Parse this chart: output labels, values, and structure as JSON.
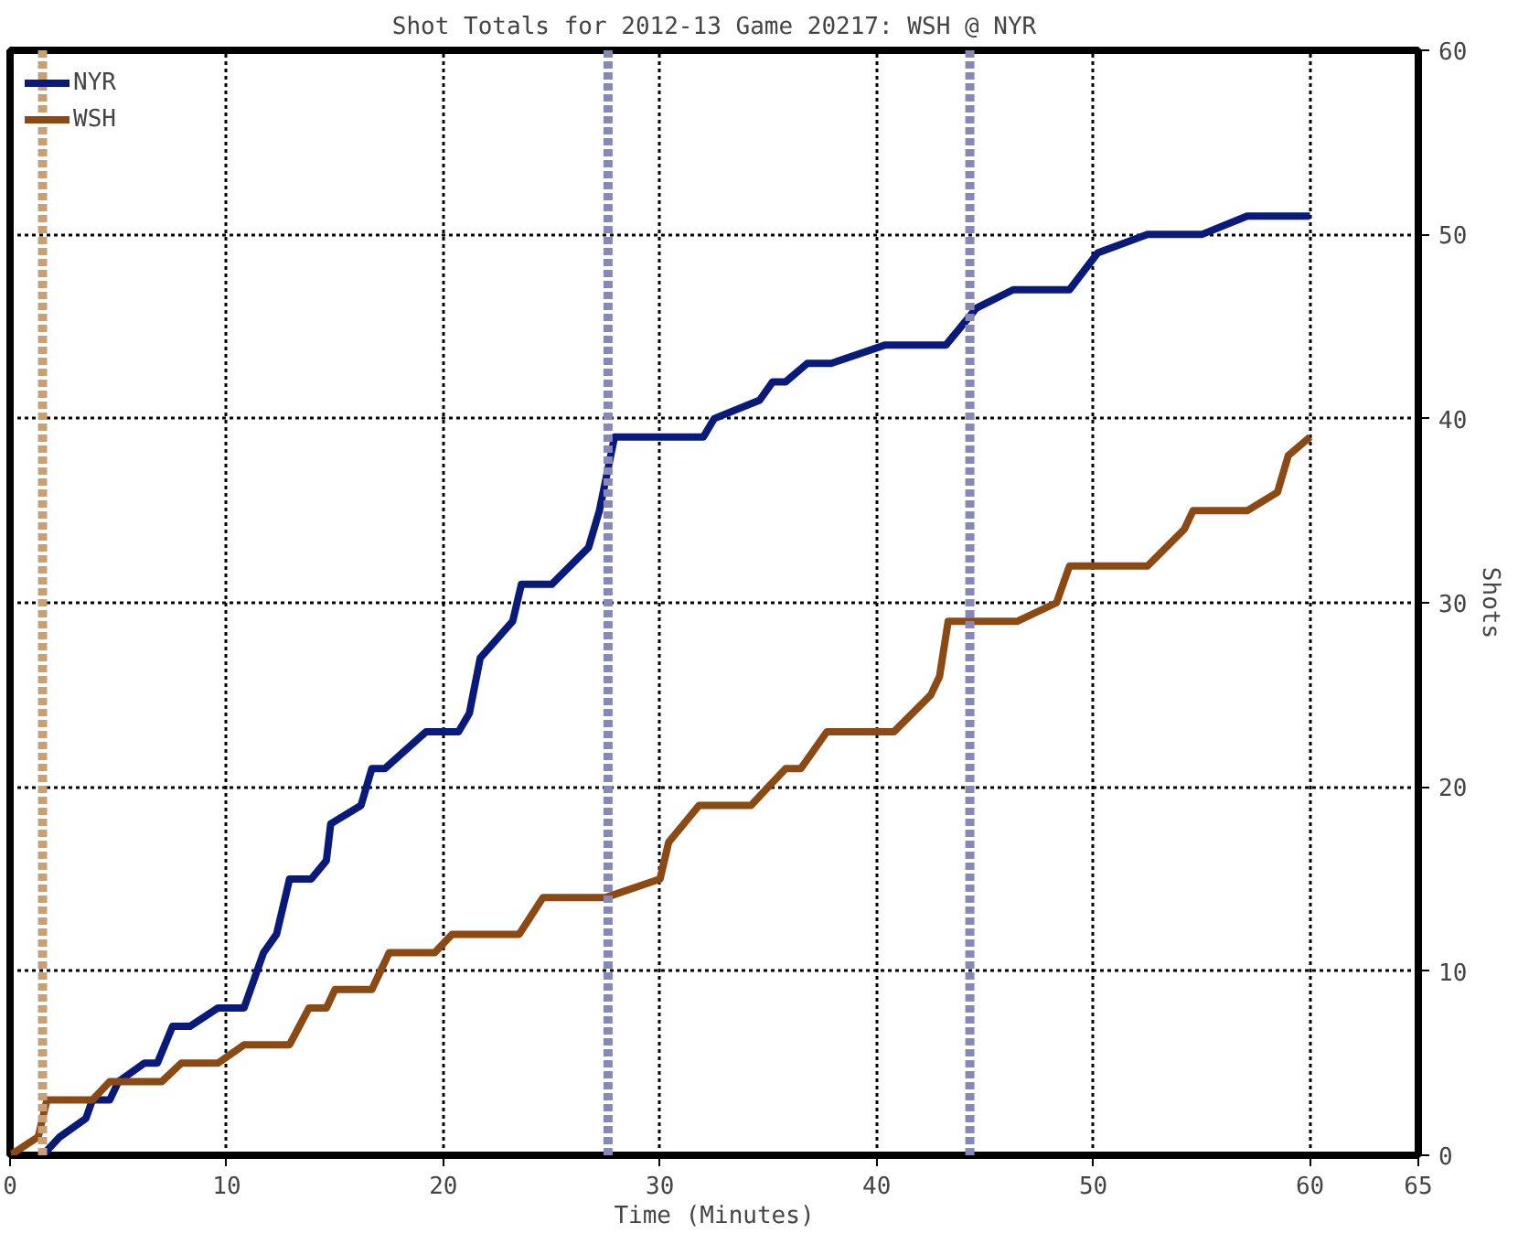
{
  "chart_data": {
    "type": "line",
    "title": "Shot Totals for 2012-13 Game 20217: WSH @ NYR",
    "xlabel": "Time (Minutes)",
    "ylabel": "Shots",
    "xlim": [
      0,
      65
    ],
    "xticks": [
      0,
      10,
      20,
      30,
      40,
      50,
      60,
      65
    ],
    "ylim": [
      0,
      60
    ],
    "yticks": [
      0,
      10,
      20,
      30,
      40,
      50,
      60
    ],
    "grid": true,
    "legend": "top left",
    "line_style": "solid",
    "marker": "none",
    "series": [
      {
        "name": "NYR",
        "color": "#0a1a7a",
        "x": [
          1.5,
          2.3,
          3.5,
          3.8,
          4.6,
          5,
          6.2,
          6.8,
          7.5,
          8.3,
          9.6,
          10.8,
          11.7,
          12.3,
          12.9,
          13.9,
          14.6,
          14.8,
          16.2,
          16.7,
          17.3,
          19.2,
          20.7,
          21.2,
          21.7,
          23.2,
          23.6,
          25,
          26.7,
          27.2,
          27.9,
          32,
          32.5,
          34.6,
          35.2,
          35.8,
          36.8,
          37.9,
          40.4,
          43.2,
          44.6,
          46.3,
          48.9,
          50.2,
          52.5,
          55,
          57.1,
          60
        ],
        "values": [
          0,
          1,
          2,
          3,
          3,
          4,
          5,
          5,
          7,
          7,
          8,
          8,
          11,
          12,
          15,
          15,
          16,
          18,
          19,
          21,
          21,
          23,
          23,
          24,
          27,
          29,
          31,
          31,
          33,
          35,
          39,
          39,
          40,
          41,
          42,
          42,
          43,
          43,
          44,
          44,
          46,
          47,
          47,
          49,
          50,
          50,
          51,
          51
        ]
      },
      {
        "name": "WSH",
        "color": "#8b4a14",
        "x": [
          0,
          1.3,
          1.7,
          3.8,
          4.6,
          7,
          7.9,
          9.6,
          10.8,
          12.9,
          13.8,
          14.6,
          15,
          16.7,
          17.5,
          19.6,
          20.4,
          23.5,
          24.6,
          27.5,
          30,
          30.4,
          31.8,
          34.2,
          35,
          35.8,
          36.5,
          37.7,
          40.8,
          42.5,
          42.9,
          43.3,
          46.5,
          48.3,
          48.9,
          52.5,
          54.2,
          54.6,
          57.1,
          58.5,
          59,
          60
        ],
        "values": [
          0,
          1,
          3,
          3,
          4,
          4,
          5,
          5,
          6,
          6,
          8,
          8,
          9,
          9,
          11,
          11,
          12,
          12,
          14,
          14,
          15,
          17,
          19,
          19,
          20,
          21,
          21,
          23,
          23,
          25,
          26,
          29,
          29,
          30,
          32,
          32,
          34,
          35,
          35,
          36,
          38,
          39
        ]
      }
    ],
    "ref_lines": [
      {
        "axis": "x",
        "value": 1.5,
        "color": "#c8a078",
        "line_style": "dashed"
      },
      {
        "axis": "x",
        "value": 27.6,
        "color": "#8888b8",
        "line_style": "dashed"
      },
      {
        "axis": "x",
        "value": 44.3,
        "color": "#8888b8",
        "line_style": "dashed"
      }
    ]
  }
}
